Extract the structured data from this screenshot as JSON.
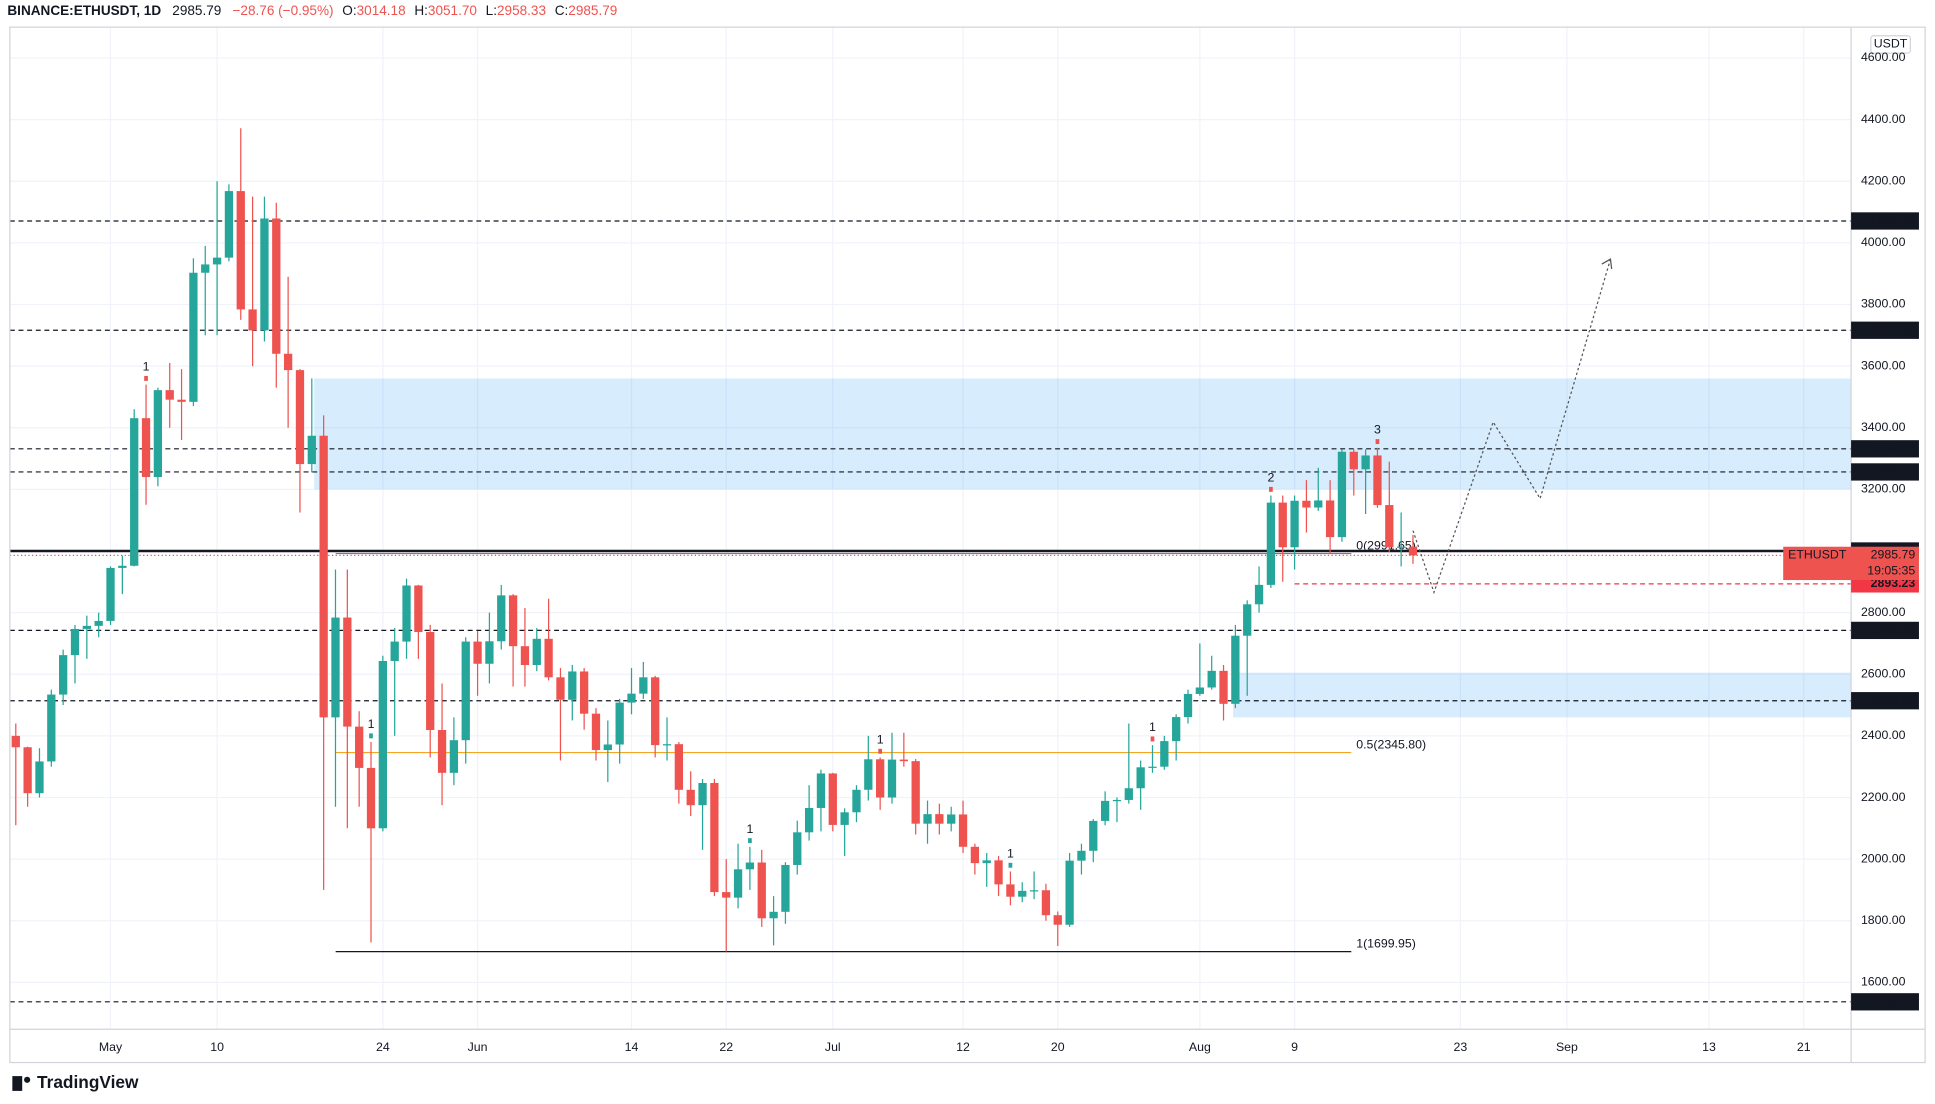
{
  "chart_data": {
    "type": "candlestick",
    "header": {
      "symbol": "BINANCE:ETHUSDT, 1D",
      "last": "2985.79",
      "change": "−28.76 (−0.95%)",
      "o_key": "O:",
      "o": "3014.18",
      "h_key": "H:",
      "h": "3051.70",
      "l_key": "L:",
      "l": "2958.33",
      "c_key": "C:",
      "c": "2985.79"
    },
    "currency": "USDT",
    "symbol": "ETHUSDT",
    "countdown": "19:05:35",
    "brand": "TradingView",
    "up_color": "#26a69a",
    "down_color": "#ef5350",
    "xlim": [
      -0.5,
      155
    ],
    "ylim": [
      1448,
      4700
    ],
    "xticks": [
      {
        "value": 8,
        "label": "May"
      },
      {
        "value": 17,
        "label": "10"
      },
      {
        "value": 31,
        "label": "24"
      },
      {
        "value": 39,
        "label": "Jun"
      },
      {
        "value": 52,
        "label": "14"
      },
      {
        "value": 60,
        "label": "22"
      },
      {
        "value": 69,
        "label": "Jul"
      },
      {
        "value": 80,
        "label": "12"
      },
      {
        "value": 88,
        "label": "20"
      },
      {
        "value": 100,
        "label": "Aug"
      },
      {
        "value": 108,
        "label": "9"
      },
      {
        "value": 122,
        "label": "23"
      },
      {
        "value": 131,
        "label": "Sep"
      },
      {
        "value": 143,
        "label": "13"
      },
      {
        "value": 151,
        "label": "21"
      }
    ],
    "yticks": [
      {
        "value": 1600,
        "label": "1600.00"
      },
      {
        "value": 1800,
        "label": "1800.00"
      },
      {
        "value": 2000,
        "label": "2000.00"
      },
      {
        "value": 2200,
        "label": "2200.00"
      },
      {
        "value": 2400,
        "label": "2400.00"
      },
      {
        "value": 2600,
        "label": "2600.00"
      },
      {
        "value": 2800,
        "label": "2800.00"
      },
      {
        "value": 3000,
        "label": "3000.00"
      },
      {
        "value": 3200,
        "label": "3200.00"
      },
      {
        "value": 3400,
        "label": "3400.00"
      },
      {
        "value": 3600,
        "label": "3600.00"
      },
      {
        "value": 3800,
        "label": "3800.00"
      },
      {
        "value": 4000,
        "label": "4000.00"
      },
      {
        "value": 4200,
        "label": "4200.00"
      },
      {
        "value": 4400,
        "label": "4400.00"
      },
      {
        "value": 4600,
        "label": "4600.00"
      }
    ],
    "grid": true,
    "levels": [
      4071.03,
      3716.35,
      3331.56,
      3256.53,
      {
        "value": 3000,
        "label": "3000.00"
      },
      2742.23,
      2514.04,
      1536.92
    ],
    "stop_level": 2893.23,
    "zones": [
      {
        "from": 3200,
        "to": 3560
      },
      {
        "from": 2460,
        "to": 2605
      }
    ],
    "fib": [
      {
        "value": 1699.95,
        "label": "1(1699.95)",
        "color": "#131722"
      },
      {
        "value": 2345.8,
        "label": "0.5(2345.80)",
        "color": "#f5a623"
      },
      {
        "value": 2991.65,
        "label": "0(2991.65)",
        "color": "#787b86"
      }
    ],
    "markers": [
      {
        "x": 11,
        "label": "1",
        "color": "#ef5350"
      },
      {
        "x": 30,
        "label": "1",
        "color": "#26a69a"
      },
      {
        "x": 62,
        "label": "1",
        "color": "#26a69a"
      },
      {
        "x": 73,
        "label": "1",
        "color": "#ef5350"
      },
      {
        "x": 84,
        "label": "1",
        "color": "#26a69a"
      },
      {
        "x": 96,
        "label": "1",
        "color": "#ef5350"
      },
      {
        "x": 106,
        "label": "2",
        "color": "#ef5350"
      },
      {
        "x": 115,
        "label": "3",
        "color": "#ef5350"
      }
    ],
    "ohlc": [
      [
        2400,
        2440,
        2110,
        2363
      ],
      [
        2363,
        2365,
        2170,
        2214
      ],
      [
        2214,
        2360,
        2200,
        2317
      ],
      [
        2317,
        2550,
        2300,
        2534
      ],
      [
        2534,
        2680,
        2500,
        2662
      ],
      [
        2662,
        2760,
        2570,
        2747
      ],
      [
        2747,
        2790,
        2650,
        2757
      ],
      [
        2757,
        2800,
        2720,
        2773
      ],
      [
        2773,
        2950,
        2760,
        2945
      ],
      [
        2945,
        2985,
        2860,
        2952
      ],
      [
        2952,
        3460,
        2950,
        3431
      ],
      [
        3431,
        3540,
        3150,
        3240
      ],
      [
        3240,
        3530,
        3210,
        3522
      ],
      [
        3522,
        3610,
        3400,
        3491
      ],
      [
        3491,
        3590,
        3360,
        3484
      ],
      [
        3484,
        3950,
        3470,
        3903
      ],
      [
        3903,
        3990,
        3700,
        3930
      ],
      [
        3930,
        4200,
        3700,
        3952
      ],
      [
        3952,
        4190,
        3940,
        4168
      ],
      [
        4168,
        4372,
        3750,
        3784
      ],
      [
        3784,
        4150,
        3600,
        3716
      ],
      [
        3716,
        4150,
        3680,
        4079
      ],
      [
        4079,
        4130,
        3530,
        3640
      ],
      [
        3640,
        3890,
        3400,
        3587
      ],
      [
        3587,
        3590,
        3125,
        3282
      ],
      [
        3282,
        3560,
        3255,
        3374
      ],
      [
        3374,
        3440,
        1900,
        2460
      ],
      [
        2460,
        2940,
        2170,
        2784
      ],
      [
        2784,
        2940,
        2100,
        2430
      ],
      [
        2430,
        2480,
        2170,
        2296
      ],
      [
        2296,
        2380,
        1730,
        2100
      ],
      [
        2100,
        2660,
        2090,
        2643
      ],
      [
        2643,
        2750,
        2400,
        2706
      ],
      [
        2706,
        2910,
        2650,
        2888
      ],
      [
        2888,
        2890,
        2650,
        2737
      ],
      [
        2737,
        2760,
        2330,
        2419
      ],
      [
        2419,
        2570,
        2175,
        2280
      ],
      [
        2280,
        2460,
        2240,
        2386
      ],
      [
        2386,
        2720,
        2310,
        2706
      ],
      [
        2706,
        2740,
        2530,
        2634
      ],
      [
        2634,
        2800,
        2570,
        2707
      ],
      [
        2707,
        2890,
        2680,
        2856
      ],
      [
        2856,
        2860,
        2560,
        2691
      ],
      [
        2691,
        2815,
        2560,
        2630
      ],
      [
        2630,
        2750,
        2610,
        2715
      ],
      [
        2715,
        2845,
        2580,
        2590
      ],
      [
        2590,
        2620,
        2320,
        2517
      ],
      [
        2517,
        2630,
        2450,
        2609
      ],
      [
        2609,
        2620,
        2420,
        2472
      ],
      [
        2472,
        2490,
        2320,
        2354
      ],
      [
        2354,
        2450,
        2250,
        2372
      ],
      [
        2372,
        2520,
        2310,
        2508
      ],
      [
        2508,
        2620,
        2470,
        2537
      ],
      [
        2537,
        2640,
        2520,
        2590
      ],
      [
        2590,
        2595,
        2330,
        2370
      ],
      [
        2370,
        2460,
        2320,
        2373
      ],
      [
        2373,
        2380,
        2180,
        2225
      ],
      [
        2225,
        2285,
        2140,
        2175
      ],
      [
        2175,
        2260,
        2030,
        2247
      ],
      [
        2247,
        2260,
        1880,
        1893
      ],
      [
        1893,
        2000,
        1700,
        1875
      ],
      [
        1875,
        2050,
        1840,
        1967
      ],
      [
        1967,
        2040,
        1900,
        1989
      ],
      [
        1989,
        2030,
        1780,
        1808
      ],
      [
        1808,
        1880,
        1720,
        1829
      ],
      [
        1829,
        1990,
        1790,
        1981
      ],
      [
        1981,
        2125,
        1950,
        2087
      ],
      [
        2087,
        2240,
        2060,
        2166
      ],
      [
        2166,
        2290,
        2090,
        2278
      ],
      [
        2278,
        2280,
        2090,
        2111
      ],
      [
        2111,
        2165,
        2010,
        2152
      ],
      [
        2152,
        2240,
        2120,
        2225
      ],
      [
        2225,
        2400,
        2190,
        2324
      ],
      [
        2324,
        2330,
        2160,
        2200
      ],
      [
        2200,
        2410,
        2180,
        2323
      ],
      [
        2323,
        2410,
        2300,
        2318
      ],
      [
        2318,
        2325,
        2080,
        2115
      ],
      [
        2115,
        2190,
        2050,
        2146
      ],
      [
        2146,
        2180,
        2080,
        2115
      ],
      [
        2115,
        2170,
        2090,
        2145
      ],
      [
        2145,
        2190,
        2020,
        2040
      ],
      [
        2040,
        2050,
        1950,
        1987
      ],
      [
        1987,
        2020,
        1910,
        1996
      ],
      [
        1996,
        2010,
        1880,
        1918
      ],
      [
        1918,
        1960,
        1850,
        1878
      ],
      [
        1878,
        1925,
        1860,
        1897
      ],
      [
        1897,
        1960,
        1870,
        1899
      ],
      [
        1899,
        1920,
        1800,
        1818
      ],
      [
        1818,
        1830,
        1718,
        1787
      ],
      [
        1787,
        2020,
        1780,
        1995
      ],
      [
        1995,
        2050,
        1950,
        2027
      ],
      [
        2027,
        2130,
        1990,
        2124
      ],
      [
        2124,
        2220,
        2110,
        2189
      ],
      [
        2189,
        2200,
        2120,
        2192
      ],
      [
        2192,
        2440,
        2180,
        2230
      ],
      [
        2230,
        2320,
        2160,
        2298
      ],
      [
        2298,
        2370,
        2280,
        2300
      ],
      [
        2300,
        2400,
        2290,
        2383
      ],
      [
        2383,
        2470,
        2320,
        2461
      ],
      [
        2461,
        2550,
        2440,
        2536
      ],
      [
        2536,
        2700,
        2530,
        2557
      ],
      [
        2557,
        2660,
        2550,
        2611
      ],
      [
        2611,
        2630,
        2450,
        2504
      ],
      [
        2504,
        2760,
        2490,
        2725
      ],
      [
        2725,
        2840,
        2530,
        2827
      ],
      [
        2827,
        2950,
        2800,
        2890
      ],
      [
        2890,
        3180,
        2880,
        3157
      ],
      [
        3157,
        3180,
        2900,
        3012
      ],
      [
        3012,
        3180,
        2940,
        3163
      ],
      [
        3163,
        3230,
        3060,
        3141
      ],
      [
        3141,
        3270,
        3130,
        3164
      ],
      [
        3164,
        3230,
        2990,
        3045
      ],
      [
        3045,
        3330,
        3030,
        3322
      ],
      [
        3322,
        3330,
        3180,
        3265
      ],
      [
        3265,
        3330,
        3120,
        3310
      ],
      [
        3310,
        3335,
        3140,
        3149
      ],
      [
        3149,
        3290,
        2995,
        3012
      ],
      [
        3012,
        3125,
        2950,
        3014.18
      ],
      [
        3014.18,
        3051.7,
        2958.33,
        2985.79
      ]
    ]
  }
}
